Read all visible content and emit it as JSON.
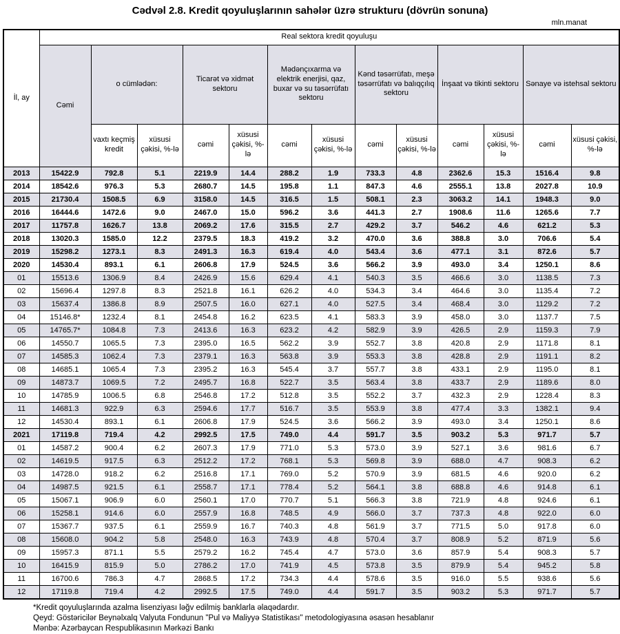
{
  "title": "Cədvəl 2.8. Kredit qoyuluşlarının sahələr üzrə strukturu (dövrün sonuna)",
  "unit": "mln.manat",
  "table": {
    "corner_label": "İl, ay",
    "top_header": "Real sektora kredit qoyuluşu",
    "groups": [
      {
        "label": "Cəmi",
        "sub": []
      },
      {
        "label": "o cümlədən:",
        "sub": [
          "vaxtı keçmiş kredit",
          "xüsusi çəkisi, %-lə"
        ]
      },
      {
        "label": "Ticarət və xidmət sektoru",
        "sub": [
          "cəmi",
          "xüsusi çəkisi, %-lə"
        ]
      },
      {
        "label": "Mədənçıxarma və elektrik enerjisi, qaz, buxar və su təsərrüfatı sektoru",
        "sub": [
          "cəmi",
          "xüsusi çəkisi, %-lə"
        ]
      },
      {
        "label": "Kənd təsərrüfatı, meşə təsərrüfatı və balıqçılıq sektoru",
        "sub": [
          "cəmi",
          "xüsusi çəkisi, %-lə"
        ]
      },
      {
        "label": "İnşaat və tikinti sektoru",
        "sub": [
          "cəmi",
          "xüsusi çəkisi, %-lə"
        ]
      },
      {
        "label": "Sənaye və istehsal sektoru",
        "sub": [
          "cəmi",
          "xüsusi çəkisi, %-lə"
        ]
      }
    ],
    "rows": [
      {
        "label": "2013",
        "type": "year",
        "values": [
          "15422.9",
          "792.8",
          "5.1",
          "2219.9",
          "14.4",
          "288.2",
          "1.9",
          "733.3",
          "4.8",
          "2362.6",
          "15.3",
          "1516.4",
          "9.8"
        ]
      },
      {
        "label": "2014",
        "type": "year",
        "values": [
          "18542.6",
          "976.3",
          "5.3",
          "2680.7",
          "14.5",
          "195.8",
          "1.1",
          "847.3",
          "4.6",
          "2555.1",
          "13.8",
          "2027.8",
          "10.9"
        ]
      },
      {
        "label": "2015",
        "type": "year",
        "values": [
          "21730.4",
          "1508.5",
          "6.9",
          "3158.0",
          "14.5",
          "316.5",
          "1.5",
          "508.1",
          "2.3",
          "3063.2",
          "14.1",
          "1948.3",
          "9.0"
        ]
      },
      {
        "label": "2016",
        "type": "year",
        "values": [
          "16444.6",
          "1472.6",
          "9.0",
          "2467.0",
          "15.0",
          "596.2",
          "3.6",
          "441.3",
          "2.7",
          "1908.6",
          "11.6",
          "1265.6",
          "7.7"
        ]
      },
      {
        "label": "2017",
        "type": "year",
        "values": [
          "11757.8",
          "1626.7",
          "13.8",
          "2069.2",
          "17.6",
          "315.5",
          "2.7",
          "429.2",
          "3.7",
          "546.2",
          "4.6",
          "621.2",
          "5.3"
        ]
      },
      {
        "label": "2018",
        "type": "year",
        "values": [
          "13020.3",
          "1585.0",
          "12.2",
          "2379.5",
          "18.3",
          "419.2",
          "3.2",
          "470.0",
          "3.6",
          "388.8",
          "3.0",
          "706.6",
          "5.4"
        ]
      },
      {
        "label": "2019",
        "type": "year",
        "values": [
          "15298.2",
          "1273.1",
          "8.3",
          "2491.3",
          "16.3",
          "619.4",
          "4.0",
          "543.4",
          "3.6",
          "477.1",
          "3.1",
          "872.6",
          "5.7"
        ]
      },
      {
        "label": "2020",
        "type": "year",
        "values": [
          "14530.4",
          "893.1",
          "6.1",
          "2606.8",
          "17.9",
          "524.5",
          "3.6",
          "566.2",
          "3.9",
          "493.0",
          "3.4",
          "1250.1",
          "8.6"
        ]
      },
      {
        "label": "01",
        "type": "month",
        "values": [
          "15513.6",
          "1306.9",
          "8.4",
          "2426.9",
          "15.6",
          "629.4",
          "4.1",
          "540.3",
          "3.5",
          "466.6",
          "3.0",
          "1138.5",
          "7.3"
        ]
      },
      {
        "label": "02",
        "type": "month",
        "values": [
          "15696.4",
          "1297.8",
          "8.3",
          "2521.8",
          "16.1",
          "626.2",
          "4.0",
          "534.3",
          "3.4",
          "464.6",
          "3.0",
          "1135.4",
          "7.2"
        ]
      },
      {
        "label": "03",
        "type": "month",
        "values": [
          "15637.4",
          "1386.8",
          "8.9",
          "2507.5",
          "16.0",
          "627.1",
          "4.0",
          "527.5",
          "3.4",
          "468.4",
          "3.0",
          "1129.2",
          "7.2"
        ]
      },
      {
        "label": "04",
        "type": "month",
        "values": [
          "15146.8*",
          "1232.4",
          "8.1",
          "2454.8",
          "16.2",
          "623.5",
          "4.1",
          "583.3",
          "3.9",
          "458.0",
          "3.0",
          "1137.7",
          "7.5"
        ]
      },
      {
        "label": "05",
        "type": "month",
        "values": [
          "14765.7*",
          "1084.8",
          "7.3",
          "2413.6",
          "16.3",
          "623.2",
          "4.2",
          "582.9",
          "3.9",
          "426.5",
          "2.9",
          "1159.3",
          "7.9"
        ]
      },
      {
        "label": "06",
        "type": "month",
        "values": [
          "14550.7",
          "1065.5",
          "7.3",
          "2395.0",
          "16.5",
          "562.2",
          "3.9",
          "552.7",
          "3.8",
          "420.8",
          "2.9",
          "1171.8",
          "8.1"
        ]
      },
      {
        "label": "07",
        "type": "month",
        "values": [
          "14585.3",
          "1062.4",
          "7.3",
          "2379.1",
          "16.3",
          "563.8",
          "3.9",
          "553.3",
          "3.8",
          "428.8",
          "2.9",
          "1191.1",
          "8.2"
        ]
      },
      {
        "label": "08",
        "type": "month",
        "values": [
          "14685.1",
          "1065.4",
          "7.3",
          "2395.2",
          "16.3",
          "545.4",
          "3.7",
          "557.7",
          "3.8",
          "433.1",
          "2.9",
          "1195.0",
          "8.1"
        ]
      },
      {
        "label": "09",
        "type": "month",
        "values": [
          "14873.7",
          "1069.5",
          "7.2",
          "2495.7",
          "16.8",
          "522.7",
          "3.5",
          "563.4",
          "3.8",
          "433.7",
          "2.9",
          "1189.6",
          "8.0"
        ]
      },
      {
        "label": "10",
        "type": "month",
        "values": [
          "14785.9",
          "1006.5",
          "6.8",
          "2546.8",
          "17.2",
          "512.8",
          "3.5",
          "552.2",
          "3.7",
          "432.3",
          "2.9",
          "1228.4",
          "8.3"
        ]
      },
      {
        "label": "11",
        "type": "month",
        "values": [
          "14681.3",
          "922.9",
          "6.3",
          "2594.6",
          "17.7",
          "516.7",
          "3.5",
          "553.9",
          "3.8",
          "477.4",
          "3.3",
          "1382.1",
          "9.4"
        ]
      },
      {
        "label": "12",
        "type": "month",
        "values": [
          "14530.4",
          "893.1",
          "6.1",
          "2606.8",
          "17.9",
          "524.5",
          "3.6",
          "566.2",
          "3.9",
          "493.0",
          "3.4",
          "1250.1",
          "8.6"
        ]
      },
      {
        "label": "2021",
        "type": "year",
        "values": [
          "17119.8",
          "719.4",
          "4.2",
          "2992.5",
          "17.5",
          "749.0",
          "4.4",
          "591.7",
          "3.5",
          "903.2",
          "5.3",
          "971.7",
          "5.7"
        ]
      },
      {
        "label": "01",
        "type": "month",
        "values": [
          "14587.2",
          "900.4",
          "6.2",
          "2607.3",
          "17.9",
          "771.0",
          "5.3",
          "573.0",
          "3.9",
          "527.1",
          "3.6",
          "981.6",
          "6.7"
        ]
      },
      {
        "label": "02",
        "type": "month",
        "values": [
          "14619.5",
          "917.5",
          "6.3",
          "2512.2",
          "17.2",
          "768.1",
          "5.3",
          "569.8",
          "3.9",
          "688.0",
          "4.7",
          "908.3",
          "6.2"
        ]
      },
      {
        "label": "03",
        "type": "month",
        "values": [
          "14728.0",
          "918.2",
          "6.2",
          "2516.8",
          "17.1",
          "769.0",
          "5.2",
          "570.9",
          "3.9",
          "681.5",
          "4.6",
          "920.0",
          "6.2"
        ]
      },
      {
        "label": "04",
        "type": "month",
        "values": [
          "14987.5",
          "921.5",
          "6.1",
          "2558.7",
          "17.1",
          "778.4",
          "5.2",
          "564.1",
          "3.8",
          "688.8",
          "4.6",
          "914.8",
          "6.1"
        ]
      },
      {
        "label": "05",
        "type": "month",
        "values": [
          "15067.1",
          "906.9",
          "6.0",
          "2560.1",
          "17.0",
          "770.7",
          "5.1",
          "566.3",
          "3.8",
          "721.9",
          "4.8",
          "924.6",
          "6.1"
        ]
      },
      {
        "label": "06",
        "type": "month",
        "values": [
          "15258.1",
          "914.6",
          "6.0",
          "2557.9",
          "16.8",
          "748.5",
          "4.9",
          "566.0",
          "3.7",
          "737.3",
          "4.8",
          "922.0",
          "6.0"
        ]
      },
      {
        "label": "07",
        "type": "month",
        "values": [
          "15367.7",
          "937.5",
          "6.1",
          "2559.9",
          "16.7",
          "740.3",
          "4.8",
          "561.9",
          "3.7",
          "771.5",
          "5.0",
          "917.8",
          "6.0"
        ]
      },
      {
        "label": "08",
        "type": "month",
        "values": [
          "15608.0",
          "904.2",
          "5.8",
          "2548.0",
          "16.3",
          "743.9",
          "4.8",
          "570.4",
          "3.7",
          "808.9",
          "5.2",
          "871.9",
          "5.6"
        ]
      },
      {
        "label": "09",
        "type": "month",
        "values": [
          "15957.3",
          "871.1",
          "5.5",
          "2579.2",
          "16.2",
          "745.4",
          "4.7",
          "573.0",
          "3.6",
          "857.9",
          "5.4",
          "908.3",
          "5.7"
        ]
      },
      {
        "label": "10",
        "type": "month",
        "values": [
          "16415.9",
          "815.9",
          "5.0",
          "2786.2",
          "17.0",
          "741.9",
          "4.5",
          "573.8",
          "3.5",
          "879.9",
          "5.4",
          "945.2",
          "5.8"
        ]
      },
      {
        "label": "11",
        "type": "month",
        "values": [
          "16700.6",
          "786.3",
          "4.7",
          "2868.5",
          "17.2",
          "734.3",
          "4.4",
          "578.6",
          "3.5",
          "916.0",
          "5.5",
          "938.6",
          "5.6"
        ]
      },
      {
        "label": "12",
        "type": "month",
        "values": [
          "17119.8",
          "719.4",
          "4.2",
          "2992.5",
          "17.5",
          "749.0",
          "4.4",
          "591.7",
          "3.5",
          "903.2",
          "5.3",
          "971.7",
          "5.7"
        ]
      }
    ]
  },
  "footnotes": [
    "*Kredit qoyuluşlarında azalma lisenziyası ləğv edilmiş banklarla əlaqədardır.",
    "Qeyd: Göstəricilər Beynəlxalq Valyuta Fondunun \"Pul və Maliyyə Statistikası\" metodologiyasına əsasən hesablanır",
    "Mənbə: Azərbaycan Respublikasının Mərkəzi Bankı"
  ]
}
